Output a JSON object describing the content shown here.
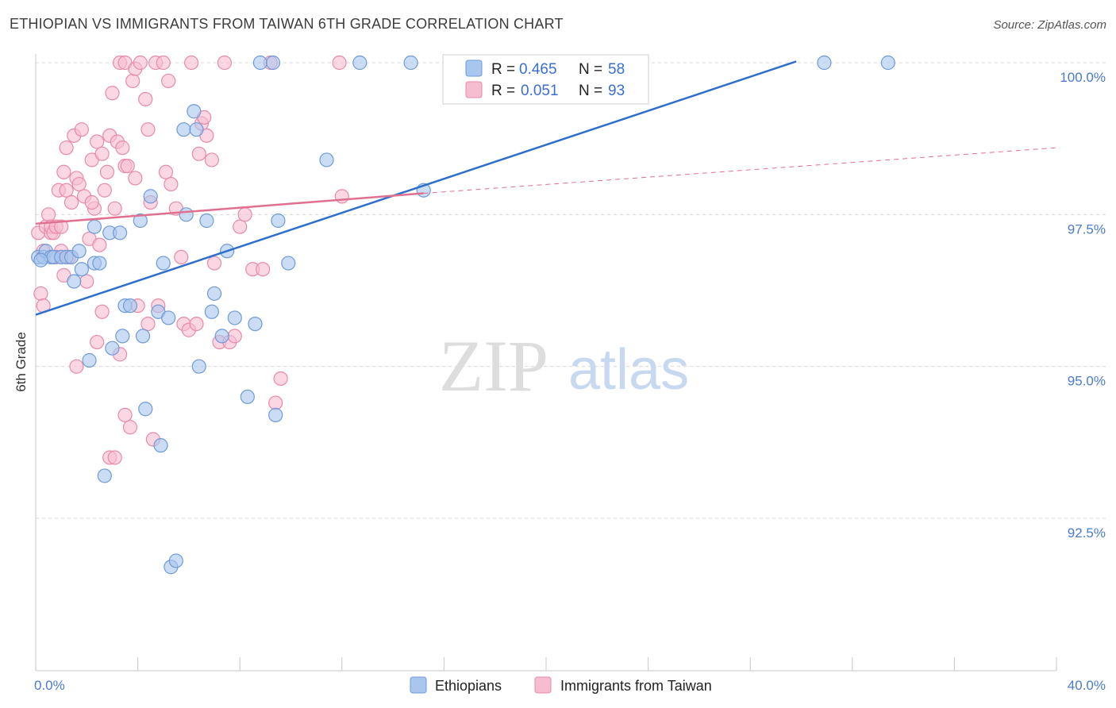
{
  "header": {
    "title": "ETHIOPIAN VS IMMIGRANTS FROM TAIWAN 6TH GRADE CORRELATION CHART",
    "source": "Source: ZipAtlas.com"
  },
  "watermark": {
    "zip": "ZIP",
    "atlas": "atlas"
  },
  "colors": {
    "blue_fill": "#a9c6ee",
    "blue_stroke": "#6f9ad8",
    "blue_line": "#2e6fce",
    "pink_fill": "#f6bcd0",
    "pink_stroke": "#e88aaa",
    "pink_line": "#e0708f",
    "tick_text": "#4a7cc9",
    "grid": "#d8d8d8"
  },
  "legend_top": {
    "rows": [
      {
        "r_label": "R =",
        "r_value": "0.465",
        "n_label": "N =",
        "n_value": "58",
        "color": "blue"
      },
      {
        "r_label": "R =",
        "r_value": "0.051",
        "n_label": "N =",
        "n_value": "93",
        "color": "pink"
      }
    ]
  },
  "legend_bottom": {
    "items": [
      {
        "label": "Ethiopians",
        "color": "blue"
      },
      {
        "label": "Immigrants from Taiwan",
        "color": "pink"
      }
    ]
  },
  "chart_data": {
    "type": "scatter",
    "title": "ETHIOPIAN VS IMMIGRANTS FROM TAIWAN 6TH GRADE CORRELATION CHART",
    "xlabel": "",
    "ylabel": "6th Grade",
    "xlim": [
      0,
      40
    ],
    "ylim": [
      90.0,
      100.2
    ],
    "x_tick_labels": [
      {
        "value": 0,
        "label": "0.0%"
      },
      {
        "value": 40,
        "label": "40.0%"
      }
    ],
    "x_minor_ticks": [
      0,
      4,
      8,
      12,
      16,
      20,
      24,
      28,
      32,
      36,
      40
    ],
    "y_ticks": [
      {
        "value": 100.0,
        "label": "100.0%"
      },
      {
        "value": 97.5,
        "label": "97.5%"
      },
      {
        "value": 95.0,
        "label": "95.0%"
      },
      {
        "value": 92.5,
        "label": "92.5%"
      }
    ],
    "grid": true,
    "series": [
      {
        "name": "Ethiopians",
        "color": "blue",
        "R": 0.465,
        "N": 58,
        "trend": {
          "x": [
            0,
            29.8
          ],
          "y": [
            95.85,
            100.02
          ],
          "dashed_to": null
        },
        "points": [
          [
            0.1,
            96.8
          ],
          [
            0.3,
            96.8
          ],
          [
            0.4,
            96.9
          ],
          [
            0.6,
            96.8
          ],
          [
            0.7,
            96.8
          ],
          [
            1.0,
            96.8
          ],
          [
            1.2,
            96.8
          ],
          [
            1.4,
            96.8
          ],
          [
            1.5,
            96.4
          ],
          [
            1.7,
            96.9
          ],
          [
            1.8,
            96.6
          ],
          [
            2.1,
            95.1
          ],
          [
            2.3,
            97.3
          ],
          [
            2.3,
            96.7
          ],
          [
            2.5,
            96.7
          ],
          [
            2.7,
            93.2
          ],
          [
            2.9,
            97.2
          ],
          [
            3.0,
            95.3
          ],
          [
            3.3,
            97.2
          ],
          [
            3.4,
            95.5
          ],
          [
            3.5,
            96.0
          ],
          [
            3.7,
            96.0
          ],
          [
            4.1,
            97.4
          ],
          [
            4.2,
            95.5
          ],
          [
            4.3,
            94.3
          ],
          [
            4.5,
            97.8
          ],
          [
            4.8,
            95.9
          ],
          [
            4.9,
            93.7
          ],
          [
            5.0,
            96.7
          ],
          [
            5.2,
            95.8
          ],
          [
            5.3,
            91.7
          ],
          [
            5.5,
            91.8
          ],
          [
            5.8,
            98.9
          ],
          [
            5.9,
            97.5
          ],
          [
            6.2,
            99.2
          ],
          [
            6.3,
            98.9
          ],
          [
            6.4,
            95.0
          ],
          [
            6.7,
            97.4
          ],
          [
            6.9,
            95.9
          ],
          [
            7.0,
            96.2
          ],
          [
            7.3,
            95.5
          ],
          [
            7.5,
            96.9
          ],
          [
            7.8,
            95.8
          ],
          [
            8.3,
            94.5
          ],
          [
            8.6,
            95.7
          ],
          [
            8.8,
            100.0
          ],
          [
            9.3,
            100.0
          ],
          [
            9.4,
            94.2
          ],
          [
            9.5,
            97.4
          ],
          [
            9.9,
            96.7
          ],
          [
            11.4,
            98.4
          ],
          [
            12.7,
            100.0
          ],
          [
            14.7,
            100.0
          ],
          [
            15.2,
            97.9
          ],
          [
            20.8,
            100.0
          ],
          [
            30.9,
            100.0
          ],
          [
            33.4,
            100.0
          ],
          [
            0.2,
            96.75
          ]
        ]
      },
      {
        "name": "Immigrants from Taiwan",
        "color": "pink",
        "R": 0.051,
        "N": 93,
        "trend": {
          "x": [
            0,
            15.2
          ],
          "y": [
            97.35,
            97.85
          ],
          "dashed_to": {
            "x": 40,
            "y": 98.6
          }
        },
        "points": [
          [
            0.1,
            97.2
          ],
          [
            0.2,
            96.2
          ],
          [
            0.3,
            96.0
          ],
          [
            0.4,
            97.3
          ],
          [
            0.5,
            97.5
          ],
          [
            0.6,
            97.2
          ],
          [
            0.6,
            97.3
          ],
          [
            0.7,
            97.2
          ],
          [
            0.8,
            97.3
          ],
          [
            0.9,
            97.9
          ],
          [
            1.0,
            96.9
          ],
          [
            1.0,
            97.3
          ],
          [
            1.1,
            98.2
          ],
          [
            1.2,
            97.9
          ],
          [
            1.2,
            98.6
          ],
          [
            1.3,
            96.8
          ],
          [
            1.4,
            97.7
          ],
          [
            1.5,
            98.8
          ],
          [
            1.6,
            98.1
          ],
          [
            1.7,
            98.0
          ],
          [
            1.8,
            98.9
          ],
          [
            1.9,
            97.8
          ],
          [
            2.0,
            96.4
          ],
          [
            2.1,
            97.1
          ],
          [
            2.2,
            98.4
          ],
          [
            2.3,
            97.6
          ],
          [
            2.4,
            98.7
          ],
          [
            2.5,
            97.0
          ],
          [
            2.6,
            98.5
          ],
          [
            2.7,
            97.9
          ],
          [
            2.8,
            98.2
          ],
          [
            2.9,
            98.8
          ],
          [
            3.0,
            99.5
          ],
          [
            3.1,
            97.6
          ],
          [
            3.2,
            98.7
          ],
          [
            3.3,
            100.0
          ],
          [
            3.4,
            98.6
          ],
          [
            3.5,
            100.0
          ],
          [
            3.5,
            98.3
          ],
          [
            3.6,
            98.3
          ],
          [
            3.8,
            99.7
          ],
          [
            3.9,
            99.9
          ],
          [
            4.1,
            100.0
          ],
          [
            4.3,
            99.4
          ],
          [
            4.4,
            98.9
          ],
          [
            4.5,
            97.7
          ],
          [
            4.7,
            100.0
          ],
          [
            4.8,
            96.0
          ],
          [
            5.0,
            100.0
          ],
          [
            5.1,
            98.2
          ],
          [
            5.2,
            99.7
          ],
          [
            5.3,
            98.0
          ],
          [
            5.5,
            97.6
          ],
          [
            5.8,
            95.7
          ],
          [
            6.0,
            95.6
          ],
          [
            6.1,
            100.0
          ],
          [
            6.3,
            95.7
          ],
          [
            6.4,
            98.5
          ],
          [
            6.5,
            99.0
          ],
          [
            6.6,
            99.1
          ],
          [
            6.7,
            98.8
          ],
          [
            6.9,
            98.4
          ],
          [
            7.0,
            96.7
          ],
          [
            7.2,
            95.4
          ],
          [
            7.4,
            100.0
          ],
          [
            7.6,
            95.4
          ],
          [
            7.8,
            95.5
          ],
          [
            8.0,
            97.3
          ],
          [
            8.2,
            97.5
          ],
          [
            8.5,
            96.6
          ],
          [
            8.9,
            96.6
          ],
          [
            9.2,
            100.0
          ],
          [
            9.4,
            94.4
          ],
          [
            9.6,
            94.8
          ],
          [
            0.3,
            96.9
          ],
          [
            1.6,
            95.0
          ],
          [
            2.4,
            95.4
          ],
          [
            2.6,
            95.9
          ],
          [
            2.9,
            93.5
          ],
          [
            3.1,
            93.5
          ],
          [
            3.3,
            95.2
          ],
          [
            3.5,
            94.2
          ],
          [
            3.7,
            94.0
          ],
          [
            4.0,
            96.0
          ],
          [
            4.4,
            95.7
          ],
          [
            4.6,
            93.8
          ],
          [
            5.7,
            96.8
          ],
          [
            11.9,
            100.0
          ],
          [
            12.0,
            97.8
          ],
          [
            0.8,
            96.8
          ],
          [
            1.1,
            96.5
          ],
          [
            2.2,
            97.7
          ],
          [
            3.9,
            98.1
          ]
        ]
      }
    ]
  }
}
